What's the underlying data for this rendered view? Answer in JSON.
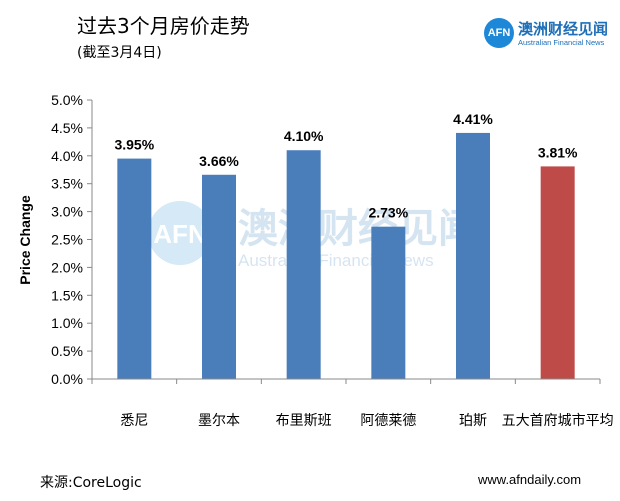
{
  "header": {
    "title": "过去3个月房价走势",
    "subtitle": "(截至3月4日)"
  },
  "logo": {
    "mark": "AFN",
    "name": "澳洲财经见闻",
    "tagline": "Australian Financial News",
    "color": "#1e88d8"
  },
  "footer": {
    "source": "来源:CoreLogic",
    "site": "www.afndaily.com"
  },
  "watermark": {
    "mark": "AFN",
    "name": "澳洲财经见闻",
    "tagline": "Australian Financial News"
  },
  "chart_data": {
    "type": "bar",
    "title": "过去3个月房价走势",
    "subtitle": "(截至3月4日)",
    "xlabel": "",
    "ylabel": "Price Change",
    "categories": [
      "悉尼",
      "墨尔本",
      "布里斯班",
      "阿德莱德",
      "珀斯",
      "五大首府城市平均"
    ],
    "values": [
      3.95,
      3.66,
      4.1,
      2.73,
      4.41,
      3.81
    ],
    "data_labels": [
      "3.95%",
      "3.66%",
      "4.10%",
      "2.73%",
      "4.41%",
      "3.81%"
    ],
    "bar_colors": [
      "#4a7ebb",
      "#4a7ebb",
      "#4a7ebb",
      "#4a7ebb",
      "#4a7ebb",
      "#be4b48"
    ],
    "ylim": [
      0,
      5.0
    ],
    "yticks": [
      0,
      0.5,
      1.0,
      1.5,
      2.0,
      2.5,
      3.0,
      3.5,
      4.0,
      4.5,
      5.0
    ],
    "ytick_labels": [
      "0.0%",
      "0.5%",
      "1.0%",
      "1.5%",
      "2.0%",
      "2.5%",
      "3.0%",
      "3.5%",
      "4.0%",
      "4.5%",
      "5.0%"
    ],
    "grid": false,
    "legend": "none"
  }
}
